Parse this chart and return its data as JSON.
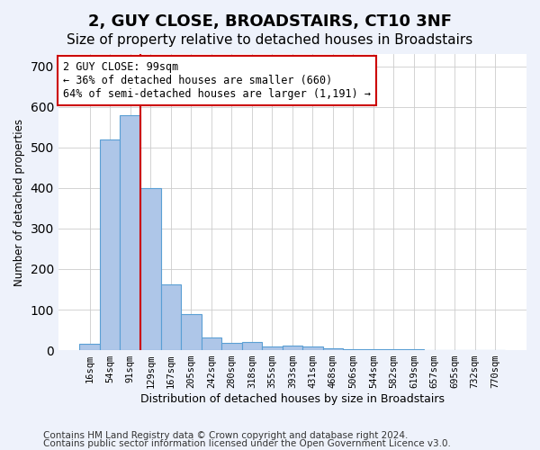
{
  "title": "2, GUY CLOSE, BROADSTAIRS, CT10 3NF",
  "subtitle": "Size of property relative to detached houses in Broadstairs",
  "xlabel": "Distribution of detached houses by size in Broadstairs",
  "ylabel": "Number of detached properties",
  "bar_labels": [
    "16sqm",
    "54sqm",
    "91sqm",
    "129sqm",
    "167sqm",
    "205sqm",
    "242sqm",
    "280sqm",
    "318sqm",
    "355sqm",
    "393sqm",
    "431sqm",
    "468sqm",
    "506sqm",
    "544sqm",
    "582sqm",
    "619sqm",
    "657sqm",
    "695sqm",
    "732sqm",
    "770sqm"
  ],
  "bar_heights": [
    15,
    520,
    580,
    400,
    163,
    88,
    32,
    17,
    21,
    10,
    12,
    8,
    5,
    3,
    2,
    2,
    2,
    1,
    1,
    1,
    1
  ],
  "bar_color": "#aec6e8",
  "bar_edge_color": "#5a9fd4",
  "property_line_x": 2.5,
  "property_line_color": "#cc0000",
  "annotation_text": "2 GUY CLOSE: 99sqm\n← 36% of detached houses are smaller (660)\n64% of semi-detached houses are larger (1,191) →",
  "annotation_box_color": "#ffffff",
  "annotation_box_edge": "#cc0000",
  "ylim": [
    0,
    730
  ],
  "yticks": [
    0,
    100,
    200,
    300,
    400,
    500,
    600,
    700
  ],
  "footnote1": "Contains HM Land Registry data © Crown copyright and database right 2024.",
  "footnote2": "Contains public sector information licensed under the Open Government Licence v3.0.",
  "bg_color": "#eef2fb",
  "plot_bg_color": "#ffffff",
  "title_fontsize": 13,
  "subtitle_fontsize": 11,
  "annotation_fontsize": 8.5,
  "footnote_fontsize": 7.5
}
